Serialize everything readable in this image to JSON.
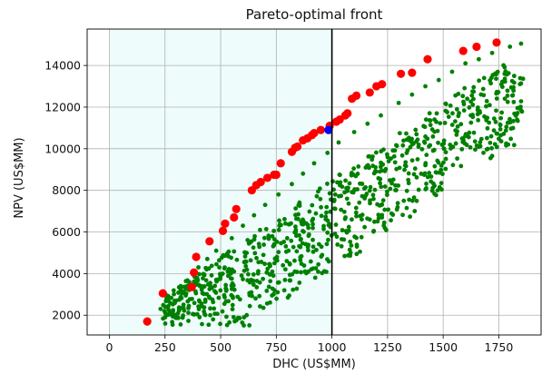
{
  "chart_data": {
    "type": "scatter",
    "title": "Pareto-optimal front",
    "xlabel": "DHC (US$MM)",
    "ylabel": "NPV (US$MM)",
    "xlim": [
      -100,
      1940
    ],
    "ylim": [
      1050,
      15750
    ],
    "xticks": [
      0,
      250,
      500,
      750,
      1000,
      1250,
      1500,
      1750
    ],
    "yticks": [
      2000,
      4000,
      6000,
      8000,
      10000,
      12000,
      14000
    ],
    "grid": true,
    "feasible_region": {
      "x_range": [
        0,
        1000
      ],
      "color": "#eefcfc"
    },
    "constraint_line": {
      "x": 1000,
      "color": "#000000"
    },
    "colors": {
      "population": "#008000",
      "pareto": "#ff0000",
      "selected": "#0000ff"
    },
    "series": [
      {
        "kind": "population",
        "color": "#008000",
        "generator": {
          "count": 900,
          "seed": 7,
          "x_range": [
            240,
            1860
          ],
          "band_slope": 7.4,
          "band_intercept": 1100,
          "band_width": 4400,
          "y_max": 15000
        },
        "x": [
          170,
          230,
          300,
          320,
          350,
          380,
          400,
          440,
          480,
          550,
          600,
          650,
          700,
          760,
          820,
          870,
          920,
          980,
          1030,
          1100,
          1160,
          1220,
          1300,
          1360,
          1420,
          1480,
          1540,
          1600,
          1660,
          1720,
          1800,
          1850
        ],
        "y": [
          1600,
          2300,
          2700,
          3100,
          3400,
          3900,
          4300,
          4700,
          5100,
          5700,
          6300,
          6800,
          7300,
          7800,
          8300,
          8800,
          9300,
          9800,
          10300,
          10800,
          11200,
          11600,
          12200,
          12600,
          13000,
          13300,
          13700,
          14100,
          14300,
          14600,
          14900,
          15050
        ]
      },
      {
        "kind": "pareto",
        "color": "#ff0000",
        "x": [
          170,
          240,
          370,
          380,
          390,
          450,
          510,
          520,
          560,
          570,
          640,
          660,
          680,
          710,
          740,
          750,
          770,
          820,
          835,
          845,
          870,
          890,
          910,
          920,
          950,
          990,
          1020,
          1035,
          1060,
          1070,
          1090,
          1110,
          1170,
          1200,
          1225,
          1310,
          1360,
          1430,
          1590,
          1650,
          1740
        ],
        "y": [
          1700,
          3050,
          3350,
          4050,
          4800,
          5550,
          6050,
          6400,
          6700,
          7100,
          8000,
          8250,
          8400,
          8600,
          8750,
          8750,
          9300,
          9850,
          10050,
          10100,
          10400,
          10500,
          10650,
          10750,
          10900,
          11100,
          11300,
          11400,
          11600,
          11700,
          12400,
          12550,
          12700,
          13000,
          13100,
          13600,
          13650,
          14300,
          14700,
          14900,
          15100
        ]
      },
      {
        "kind": "selected",
        "color": "#0000ff",
        "x": [
          985
        ],
        "y": [
          10900
        ]
      }
    ]
  }
}
